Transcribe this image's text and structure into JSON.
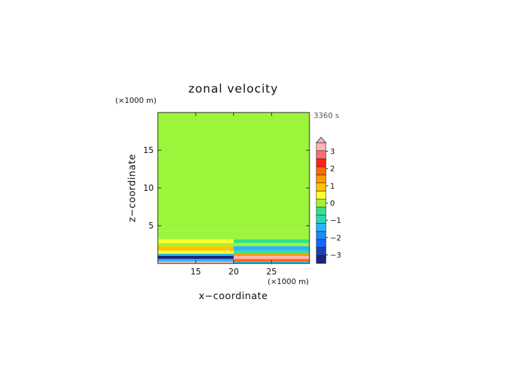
{
  "chart_data": {
    "type": "heatmap",
    "title": "zonal velocity",
    "time_label": "3360 s",
    "xlabel": "x−coordinate",
    "ylabel": "z−coordinate",
    "x_unit": "(×1000 m)",
    "y_unit": "(×1000 m)",
    "xlim": [
      10,
      30
    ],
    "ylim": [
      0,
      20
    ],
    "xticks": [
      15,
      20,
      25
    ],
    "yticks": [
      5,
      10,
      15
    ],
    "colorbar": {
      "min": -3.5,
      "max": 3.5,
      "step": 0.5,
      "ticks": [
        3,
        2,
        1,
        0,
        -1,
        -2,
        -3
      ],
      "extend_top": true,
      "colors": [
        "#1a237e",
        "#1e3fb0",
        "#1565ff",
        "#1e88ff",
        "#29b6f6",
        "#26d7c0",
        "#35e08a",
        "#9cf53a",
        "#ffff2e",
        "#ffc400",
        "#ff9a00",
        "#ff6a00",
        "#ff2020",
        "#ff6e6e",
        "#ffb3b3"
      ]
    },
    "bands_left": [
      {
        "z": [
          0.0,
          0.25
        ],
        "value": 3.5
      },
      {
        "z": [
          0.25,
          0.6
        ],
        "value": -1.5
      },
      {
        "z": [
          0.6,
          1.0
        ],
        "value": -3.2
      },
      {
        "z": [
          1.0,
          1.3
        ],
        "value": -1.2
      },
      {
        "z": [
          1.3,
          1.7
        ],
        "value": 0.3
      },
      {
        "z": [
          1.7,
          2.3
        ],
        "value": 0.9
      },
      {
        "z": [
          2.3,
          2.7
        ],
        "value": 0.1
      },
      {
        "z": [
          2.7,
          3.2
        ],
        "value": 0.6
      },
      {
        "z": [
          3.2,
          3.6
        ],
        "value": -0.2
      },
      {
        "z": [
          3.6,
          4.2
        ],
        "value": 0.2
      },
      {
        "z": [
          4.2,
          6.3
        ],
        "value": -0.2
      },
      {
        "z": [
          6.3,
          9.8
        ],
        "value": 0.1
      },
      {
        "z": [
          9.8,
          13.3
        ],
        "value": -0.2
      },
      {
        "z": [
          13.3,
          17.2
        ],
        "value": 0.1
      },
      {
        "z": [
          17.2,
          20.0
        ],
        "value": -0.2
      }
    ],
    "bands_right": [
      {
        "z": [
          0.0,
          0.25
        ],
        "value": -1.5
      },
      {
        "z": [
          0.25,
          0.6
        ],
        "value": 1.8
      },
      {
        "z": [
          0.6,
          1.0
        ],
        "value": 3.2
      },
      {
        "z": [
          1.0,
          1.3
        ],
        "value": 1.2
      },
      {
        "z": [
          1.3,
          1.7
        ],
        "value": -0.3
      },
      {
        "z": [
          1.7,
          2.3
        ],
        "value": -1.2
      },
      {
        "z": [
          2.3,
          2.7
        ],
        "value": -0.1
      },
      {
        "z": [
          2.7,
          3.2
        ],
        "value": -0.4
      },
      {
        "z": [
          3.2,
          3.6
        ],
        "value": 0.2
      },
      {
        "z": [
          3.6,
          4.2
        ],
        "value": -0.2
      },
      {
        "z": [
          4.2,
          6.3
        ],
        "value": 0.2
      },
      {
        "z": [
          6.3,
          9.8
        ],
        "value": -0.1
      },
      {
        "z": [
          9.8,
          13.3
        ],
        "value": 0.2
      },
      {
        "z": [
          13.3,
          17.2
        ],
        "value": -0.1
      },
      {
        "z": [
          17.2,
          20.0
        ],
        "value": 0.2
      }
    ],
    "band_split_x": 20
  }
}
